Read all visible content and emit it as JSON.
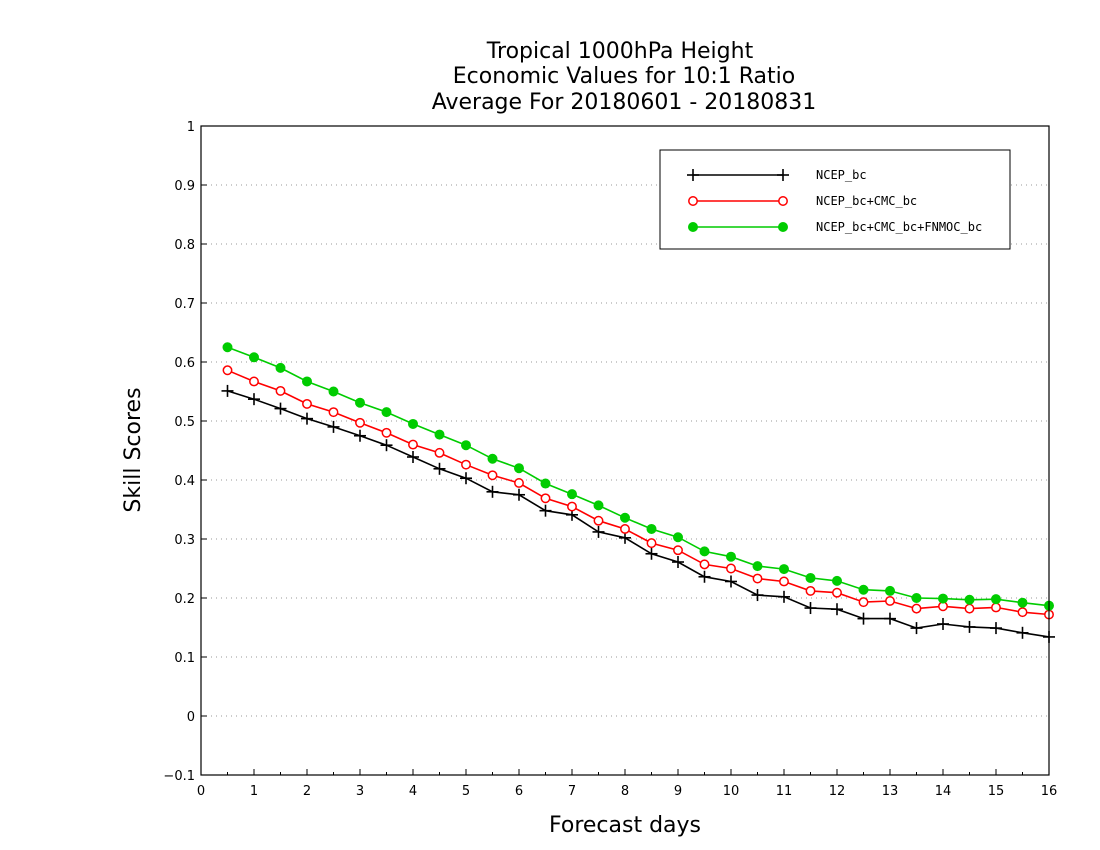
{
  "chart_data": {
    "type": "line",
    "title": [
      "Tropical 1000hPa Height",
      "Economic Values for 10:1 Ratio",
      "Average For 20180601 - 20180831"
    ],
    "xlabel": "Forecast days",
    "ylabel": "Skill Scores",
    "xlim": [
      0,
      16
    ],
    "ylim": [
      -0.1,
      1
    ],
    "xticks": [
      "0",
      "1",
      "2",
      "3",
      "4",
      "5",
      "6",
      "7",
      "8",
      "9",
      "10",
      "11",
      "12",
      "13",
      "14",
      "15",
      "16"
    ],
    "yticks": [
      "−0.1",
      "0",
      "0.1",
      "0.2",
      "0.3",
      "0.4",
      "0.5",
      "0.6",
      "0.7",
      "0.8",
      "0.9",
      "1"
    ],
    "grid": "horizontal dotted",
    "legend_position": "top-right",
    "x": [
      0.5,
      1,
      1.5,
      2,
      2.5,
      3,
      3.5,
      4,
      4.5,
      5,
      5.5,
      6,
      6.5,
      7,
      7.5,
      8,
      8.5,
      9,
      9.5,
      10,
      10.5,
      11,
      11.5,
      12,
      12.5,
      13,
      13.5,
      14,
      14.5,
      15,
      15.5,
      16
    ],
    "series": [
      {
        "name": "NCEP_bc",
        "color": "#000000",
        "marker": "plus",
        "values": [
          0.551,
          0.537,
          0.521,
          0.504,
          0.49,
          0.475,
          0.459,
          0.439,
          0.419,
          0.403,
          0.38,
          0.375,
          0.348,
          0.341,
          0.312,
          0.302,
          0.275,
          0.261,
          0.236,
          0.228,
          0.205,
          0.202,
          0.183,
          0.181,
          0.165,
          0.165,
          0.149,
          0.156,
          0.151,
          0.149,
          0.141,
          0.134
        ]
      },
      {
        "name": "NCEP_bc+CMC_bc",
        "color": "#ff0000",
        "marker": "open-circle",
        "values": [
          0.586,
          0.567,
          0.551,
          0.529,
          0.515,
          0.497,
          0.48,
          0.46,
          0.446,
          0.426,
          0.408,
          0.395,
          0.369,
          0.355,
          0.331,
          0.317,
          0.293,
          0.281,
          0.257,
          0.25,
          0.233,
          0.228,
          0.212,
          0.209,
          0.193,
          0.195,
          0.182,
          0.186,
          0.182,
          0.184,
          0.176,
          0.172
        ]
      },
      {
        "name": "NCEP_bc+CMC_bc+FNMOC_bc",
        "color": "#00cc00",
        "marker": "filled-circle",
        "values": [
          0.625,
          0.608,
          0.59,
          0.567,
          0.55,
          0.531,
          0.515,
          0.495,
          0.477,
          0.459,
          0.436,
          0.42,
          0.394,
          0.376,
          0.357,
          0.336,
          0.317,
          0.303,
          0.279,
          0.27,
          0.254,
          0.249,
          0.234,
          0.229,
          0.214,
          0.212,
          0.2,
          0.199,
          0.197,
          0.198,
          0.192,
          0.187
        ]
      }
    ]
  }
}
